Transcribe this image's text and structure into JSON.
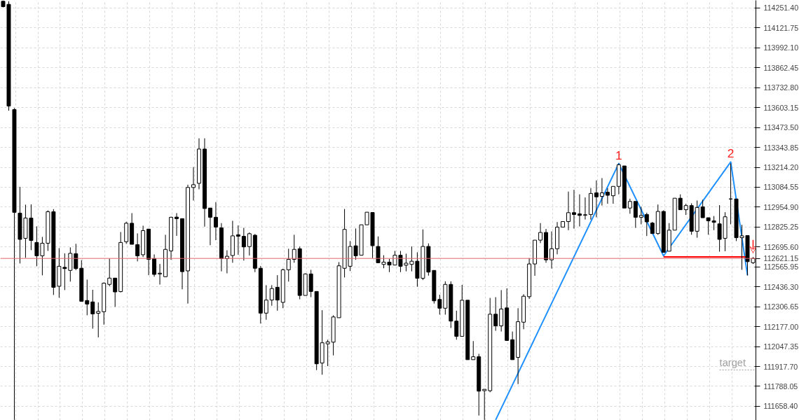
{
  "chart_data": {
    "type": "candlestick",
    "categories": [
      null,
      null,
      null,
      null,
      null,
      null,
      null,
      null,
      null,
      null,
      null,
      null,
      null,
      null,
      null,
      null,
      null,
      null,
      null,
      null,
      null,
      null,
      null,
      null,
      null,
      null,
      null,
      null,
      null,
      null,
      null,
      null,
      null,
      null,
      null,
      null,
      null,
      null,
      null,
      null,
      null,
      null,
      null,
      null,
      null,
      null,
      null,
      null,
      null,
      null,
      null,
      null,
      null,
      null,
      null,
      null,
      null,
      null,
      null,
      null,
      null,
      null,
      null,
      null,
      null,
      null,
      null,
      null,
      null,
      null,
      null,
      null,
      null,
      null,
      null,
      null,
      null,
      null,
      null,
      null,
      null,
      null,
      null,
      null,
      null,
      null,
      null,
      null,
      null,
      null,
      null,
      null,
      null,
      null,
      null,
      null,
      null,
      null,
      null,
      null,
      null,
      null,
      null,
      null,
      null,
      null,
      null,
      null,
      null,
      null,
      null,
      null,
      null,
      null,
      null,
      null,
      null,
      null,
      null,
      null,
      null,
      null,
      null,
      null,
      null,
      null,
      null,
      null,
      null,
      null,
      null,
      null,
      null,
      null,
      null
    ],
    "ohlc": [
      [
        114295,
        114300,
        114255,
        114260
      ],
      [
        114275,
        114295,
        113583,
        113613
      ],
      [
        113590,
        113600,
        111570,
        112921
      ],
      [
        112916,
        113087,
        112588,
        112745
      ],
      [
        112752,
        112971,
        112625,
        112884
      ],
      [
        112884,
        112973,
        112675,
        112738
      ],
      [
        112725,
        112830,
        112570,
        112638
      ],
      [
        112638,
        112761,
        112511,
        112720
      ],
      [
        112720,
        112934,
        112670,
        112925
      ],
      [
        112925,
        112942,
        112383,
        112433
      ],
      [
        112440,
        112688,
        112365,
        112570
      ],
      [
        112563,
        112654,
        112415,
        112555
      ],
      [
        112543,
        112693,
        112470,
        112654
      ],
      [
        112652,
        112716,
        112545,
        112555
      ],
      [
        112557,
        112610,
        112340,
        112342
      ],
      [
        112347,
        112483,
        112251,
        112324
      ],
      [
        112338,
        112417,
        112164,
        112260
      ],
      [
        112264,
        112335,
        112107,
        112276
      ],
      [
        112274,
        112465,
        112190,
        112460
      ],
      [
        112452,
        112620,
        112440,
        112493
      ],
      [
        112493,
        112493,
        112306,
        112403
      ],
      [
        112405,
        112793,
        112400,
        112725
      ],
      [
        112730,
        112860,
        112716,
        112850
      ],
      [
        112850,
        112916,
        112713,
        112713
      ],
      [
        112711,
        112784,
        112602,
        112638
      ],
      [
        112645,
        112834,
        112630,
        112802
      ],
      [
        112812,
        112812,
        112512,
        112615
      ],
      [
        112620,
        112647,
        112502,
        112517
      ],
      [
        112520,
        112585,
        112451,
        112525
      ],
      [
        112502,
        112775,
        112500,
        112680
      ],
      [
        112670,
        112892,
        112612,
        112889
      ],
      [
        112890,
        112916,
        112768,
        112880
      ],
      [
        112880,
        112880,
        112420,
        112535
      ],
      [
        112540,
        113101,
        112327,
        113083
      ],
      [
        113083,
        113216,
        112998,
        113101
      ],
      [
        113110,
        113403,
        113071,
        113333
      ],
      [
        113333,
        113403,
        112828,
        112946
      ],
      [
        112949,
        112949,
        112707,
        112889
      ],
      [
        112889,
        112988,
        112740,
        112825
      ],
      [
        112820,
        112851,
        112537,
        112620
      ],
      [
        112620,
        112674,
        112524,
        112635
      ],
      [
        112640,
        112866,
        112593,
        112768
      ],
      [
        112775,
        112836,
        112645,
        112765
      ],
      [
        112765,
        112820,
        112607,
        112696
      ],
      [
        112698,
        112790,
        112640,
        112782
      ],
      [
        112772,
        112780,
        112532,
        112557
      ],
      [
        112557,
        112572,
        112197,
        112265
      ],
      [
        112265,
        112447,
        112222,
        112350
      ],
      [
        112350,
        112447,
        112313,
        112425
      ],
      [
        112433,
        112512,
        112281,
        112350
      ],
      [
        112335,
        112555,
        112297,
        112547
      ],
      [
        112547,
        112684,
        112470,
        112615
      ],
      [
        112615,
        112775,
        112593,
        112680
      ],
      [
        112684,
        112698,
        112355,
        112380
      ],
      [
        112380,
        112524,
        112380,
        112520
      ],
      [
        112520,
        112547,
        112369,
        112406
      ],
      [
        112406,
        112406,
        111894,
        111935
      ],
      [
        111940,
        112284,
        111864,
        112072
      ],
      [
        112065,
        112092,
        111920,
        112078
      ],
      [
        112076,
        112251,
        111990,
        112240
      ],
      [
        112235,
        112597,
        112235,
        112573
      ],
      [
        112557,
        112943,
        112497,
        112810
      ],
      [
        112570,
        112734,
        112539,
        112699
      ],
      [
        112703,
        112816,
        112612,
        112638
      ],
      [
        112642,
        112840,
        112642,
        112840
      ],
      [
        112840,
        112922,
        112840,
        112922
      ],
      [
        112920,
        112920,
        112623,
        112704
      ],
      [
        112699,
        112764,
        112593,
        112593
      ],
      [
        112582,
        112642,
        112557,
        112597
      ],
      [
        112597,
        112618,
        112532,
        112578
      ],
      [
        112578,
        112670,
        112578,
        112642
      ],
      [
        112642,
        112670,
        112532,
        112570
      ],
      [
        112577,
        112652,
        112537,
        112590
      ],
      [
        112582,
        112699,
        112537,
        112603
      ],
      [
        112603,
        112661,
        112437,
        112492
      ],
      [
        112492,
        112810,
        112480,
        112699
      ],
      [
        112699,
        112719,
        112509,
        112532
      ],
      [
        112543,
        112543,
        112327,
        112345
      ],
      [
        112354,
        112385,
        112255,
        112297
      ],
      [
        112297,
        112472,
        112255,
        112452
      ],
      [
        112452,
        112472,
        112168,
        112213
      ],
      [
        112213,
        112281,
        112092,
        112114
      ],
      [
        112114,
        112449,
        112114,
        112349
      ],
      [
        112349,
        112349,
        111962,
        111962
      ],
      [
        111962,
        112083,
        111962,
        111981
      ],
      [
        111981,
        112000,
        111598,
        111757
      ],
      [
        111760,
        111770,
        111570,
        111769
      ],
      [
        111760,
        112364,
        111750,
        112258
      ],
      [
        112258,
        112369,
        112150,
        112182
      ],
      [
        112182,
        112415,
        112145,
        112292
      ],
      [
        112299,
        112426,
        112087,
        112087
      ],
      [
        112092,
        112145,
        111962,
        111962
      ],
      [
        111977,
        112297,
        111803,
        112209
      ],
      [
        112206,
        112388,
        112160,
        112375
      ],
      [
        112372,
        112623,
        112357,
        112585
      ],
      [
        112585,
        112740,
        112508,
        112740
      ],
      [
        112740,
        112851,
        112721,
        112790
      ],
      [
        112790,
        112813,
        112593,
        112612
      ],
      [
        112612,
        112797,
        112555,
        112684
      ],
      [
        112684,
        112858,
        112648,
        112825
      ],
      [
        112825,
        112861,
        112825,
        112861
      ],
      [
        112861,
        113056,
        112805,
        112919
      ],
      [
        112919,
        113068,
        112815,
        112907
      ],
      [
        112911,
        113038,
        112829,
        112901
      ],
      [
        112905,
        113018,
        112874,
        112903
      ],
      [
        112907,
        113079,
        112874,
        113044
      ],
      [
        113048,
        113129,
        112889,
        113022
      ],
      [
        113025,
        113144,
        112965,
        113048
      ],
      [
        113052,
        113079,
        112977,
        113032
      ],
      [
        113029,
        113090,
        112977,
        113090
      ],
      [
        113090,
        113239,
        113038,
        113231
      ],
      [
        113223,
        113223,
        112949,
        112949
      ],
      [
        112949,
        113010,
        112912,
        112992
      ],
      [
        112992,
        112992,
        112820,
        112889
      ],
      [
        112889,
        112957,
        112843,
        112901
      ],
      [
        112907,
        112919,
        112767,
        112859
      ],
      [
        112851,
        112859,
        112783,
        112783
      ],
      [
        112783,
        112972,
        112775,
        112927
      ],
      [
        112927,
        112934,
        112661,
        112661
      ],
      [
        112668,
        112851,
        112668,
        112805
      ],
      [
        112805,
        113013,
        112805,
        113013
      ],
      [
        113013,
        113038,
        112938,
        112938
      ],
      [
        112938,
        112977,
        112904,
        112965
      ],
      [
        112965,
        112980,
        112775,
        112798
      ],
      [
        112798,
        112998,
        112756,
        112953
      ],
      [
        112957,
        113003,
        112886,
        112886
      ],
      [
        112886,
        112886,
        112775,
        112866
      ],
      [
        112866,
        112897,
        112805,
        112856
      ],
      [
        112846,
        112968,
        112665,
        112745
      ],
      [
        112752,
        112922,
        112668,
        112892
      ],
      [
        113008,
        113239,
        112843,
        113008
      ],
      [
        113008,
        113008,
        112734,
        112756
      ],
      [
        112756,
        112840,
        112547,
        112768
      ],
      [
        112770,
        112770,
        112510,
        112600
      ],
      [
        112593,
        112630,
        112585,
        112621
      ]
    ],
    "color": "#000000",
    "series": [
      {
        "type": "line",
        "color": "#1e90ff",
        "values": [
          null,
          null,
          null,
          null,
          null,
          null,
          null,
          null,
          null,
          null,
          null,
          null,
          null,
          null,
          null,
          null,
          null,
          null,
          null,
          null,
          null,
          null,
          null,
          null,
          null,
          null,
          null,
          null,
          null,
          null,
          null,
          null,
          null,
          null,
          null,
          null,
          null,
          null,
          null,
          null,
          null,
          null,
          null,
          null,
          null,
          null,
          null,
          null,
          null,
          null,
          null,
          null,
          null,
          null,
          null,
          null,
          null,
          null,
          null,
          null,
          null,
          null,
          null,
          null,
          null,
          null,
          null,
          null,
          null,
          null,
          null,
          null,
          null,
          null,
          null,
          null,
          null,
          null,
          null,
          null,
          null,
          null,
          null,
          null,
          null,
          null,
          null,
          null,
          111570,
          null,
          null,
          null,
          null,
          null,
          null,
          null,
          null,
          null,
          null,
          null,
          null,
          null,
          null,
          null,
          null,
          null,
          null,
          null,
          null,
          null,
          113239,
          null,
          null,
          null,
          null,
          null,
          null,
          null,
          112638,
          null,
          null,
          null,
          null,
          null,
          null,
          null,
          null,
          null,
          null,
          null,
          113249,
          null,
          null,
          112511,
          null
        ]
      },
      {
        "type": "line",
        "color": "#ff0000",
        "values": [
          null,
          null,
          null,
          null,
          null,
          null,
          null,
          null,
          null,
          null,
          null,
          null,
          null,
          null,
          null,
          null,
          null,
          null,
          null,
          null,
          null,
          null,
          null,
          null,
          null,
          null,
          null,
          null,
          null,
          null,
          null,
          null,
          null,
          null,
          null,
          null,
          null,
          null,
          null,
          null,
          null,
          null,
          null,
          null,
          null,
          null,
          null,
          null,
          null,
          null,
          null,
          null,
          null,
          null,
          null,
          null,
          null,
          null,
          null,
          null,
          null,
          null,
          null,
          null,
          null,
          null,
          null,
          null,
          null,
          null,
          null,
          null,
          null,
          null,
          null,
          null,
          null,
          null,
          null,
          null,
          null,
          null,
          null,
          null,
          null,
          null,
          null,
          null,
          null,
          null,
          null,
          null,
          null,
          null,
          null,
          null,
          null,
          null,
          null,
          null,
          null,
          null,
          null,
          null,
          null,
          null,
          null,
          null,
          null,
          null,
          null,
          null,
          null,
          null,
          null,
          null,
          null,
          null,
          112631,
          null,
          null,
          null,
          null,
          null,
          null,
          null,
          null,
          null,
          null,
          null,
          null,
          null,
          null,
          112631,
          null
        ]
      }
    ],
    "ref_lines": [
      {
        "axis": "y",
        "value": 112621.15,
        "label": "112621.15",
        "color": "#e06666"
      },
      {
        "axis": "y",
        "value": 111895,
        "label": "target",
        "color": "#a0a0a0",
        "line_style": "dotted"
      }
    ],
    "annotations": [
      "1",
      "2"
    ],
    "ylim": [
      111567,
      114301
    ],
    "yticks": [
      {
        "value": 111658.4,
        "label": "111658.40"
      },
      {
        "value": 111788.05,
        "label": "111788.05"
      },
      {
        "value": 111917.7,
        "label": "111917.70"
      },
      {
        "value": 112047.35,
        "label": "112047.35"
      },
      {
        "value": 112177.0,
        "label": "112177.00"
      },
      {
        "value": 112306.65,
        "label": "112306.65"
      },
      {
        "value": 112436.3,
        "label": "112436.30"
      },
      {
        "value": 112565.95,
        "label": "112565.95"
      },
      {
        "value": 112695.6,
        "label": "112695.60"
      },
      {
        "value": 112825.25,
        "label": "112825.25"
      },
      {
        "value": 112954.9,
        "label": "112954.90"
      },
      {
        "value": 113084.55,
        "label": "113084.55"
      },
      {
        "value": 113214.2,
        "label": "113214.20"
      },
      {
        "value": 113343.85,
        "label": "113343.85"
      },
      {
        "value": 113473.5,
        "label": "113473.50"
      },
      {
        "value": 113603.15,
        "label": "113603.15"
      },
      {
        "value": 113732.8,
        "label": "113732.80"
      },
      {
        "value": 113862.45,
        "label": "113862.45"
      },
      {
        "value": 113992.1,
        "label": "113992.10"
      },
      {
        "value": 114121.75,
        "label": "114121.75"
      },
      {
        "value": 114251.4,
        "label": "114251.40"
      }
    ],
    "grid": true
  }
}
